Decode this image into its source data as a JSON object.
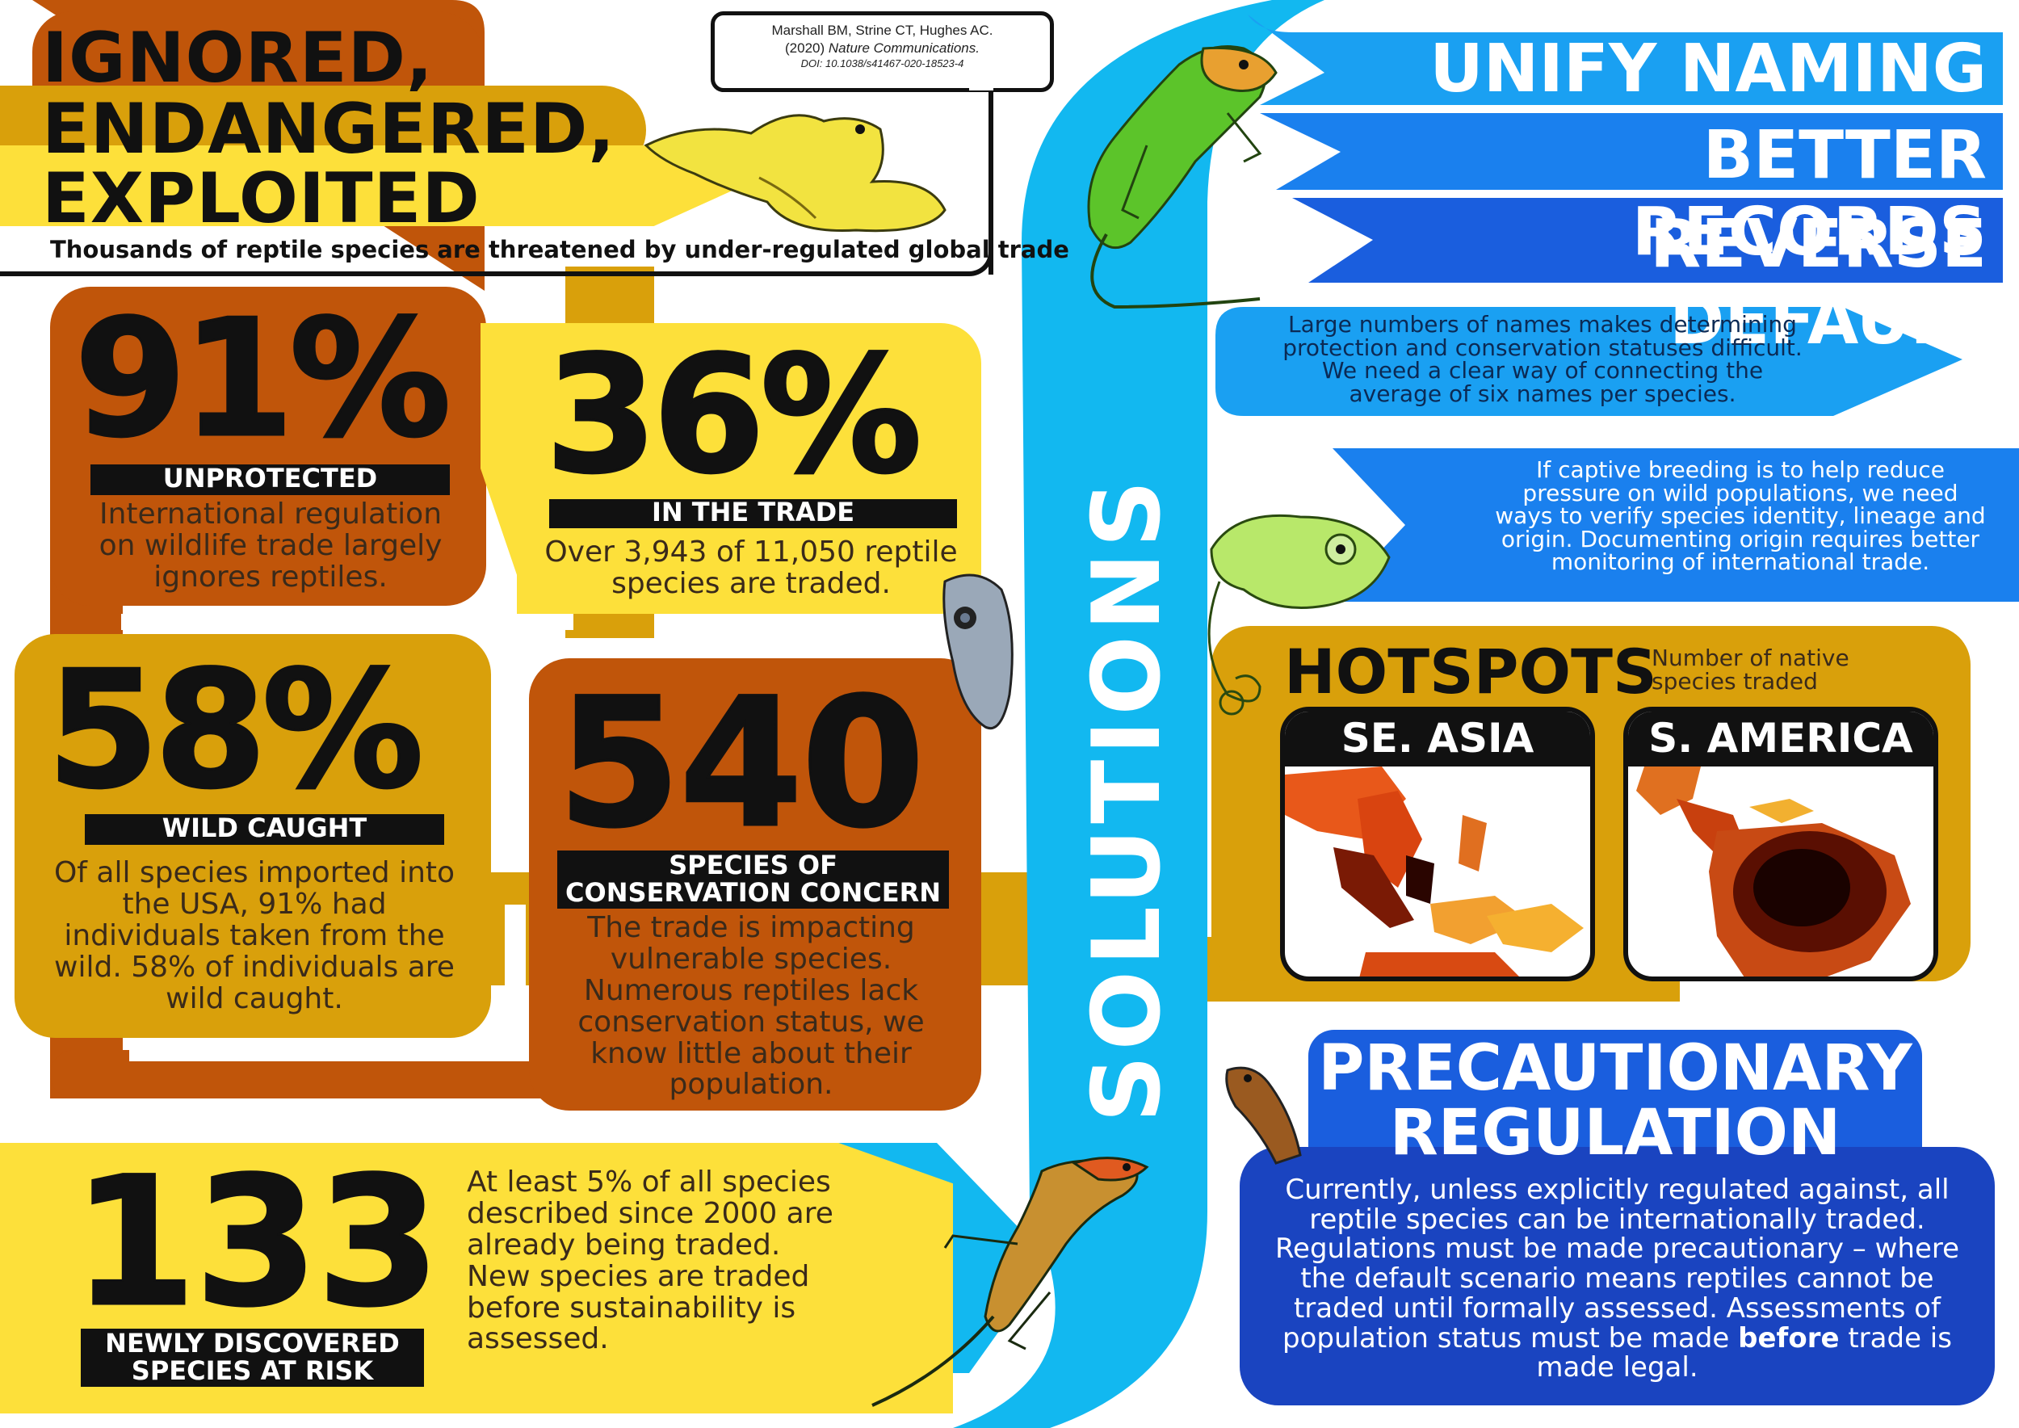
{
  "header": {
    "title_line1": "IGNORED,",
    "title_line2": "ENDANGERED,",
    "title_line3": "EXPLOITED",
    "subtitle": "Thousands of reptile species are threatened by under-regulated global trade"
  },
  "citation": {
    "authors": "Marshall BM, Strine CT, Hughes AC.",
    "journal_line_year": "(2020)",
    "journal_line_name": "Nature Communications.",
    "doi": "DOI: 10.1038/s41467-020-18523-4"
  },
  "stats": {
    "unprotected": {
      "number": "91%",
      "label": "UNPROTECTED",
      "text": "International regulation on wildlife trade largely ignores reptiles."
    },
    "in_trade": {
      "number": "36%",
      "label": "IN THE TRADE",
      "text": "Over 3,943 of 11,050 reptile species are traded."
    },
    "wild_caught": {
      "number": "58%",
      "label": "WILD CAUGHT",
      "text": "Of all species imported into the USA, 91% had individuals taken from the wild. 58% of individuals are wild caught."
    },
    "concern": {
      "number": "540",
      "label_line1": "SPECIES OF",
      "label_line2": "CONSERVATION CONCERN",
      "text": "The trade is impacting vulnerable species. Numerous reptiles lack conservation status, we know little about their population."
    },
    "newly": {
      "number": "133",
      "label_line1": "NEWLY DISCOVERED",
      "label_line2": "SPECIES AT RISK",
      "text": "At least 5% of all species described since 2000 are already being traded. New species are traded before sustainability is assessed."
    }
  },
  "solutions": {
    "vertical_title": "SOLUTIONS",
    "heading1": "UNIFY NAMING",
    "heading2": "BETTER RECORDS",
    "heading3": "REVERSE DEFAULT",
    "naming_text": "Large numbers of names makes determining protection and conservation statuses difficult. We need a clear way of connecting the average of six names per species.",
    "records_text": "If captive breeding is to help reduce pressure on wild populations, we need ways to verify species identity, lineage and origin. Documenting origin requires better monitoring of international trade."
  },
  "hotspots": {
    "title": "HOTSPOTS",
    "caption": "Number of native species traded",
    "region1": "SE. ASIA",
    "region2": "S. AMERICA"
  },
  "precautionary": {
    "title_line1": "PRECAUTIONARY",
    "title_line2": "REGULATION",
    "text_part1": "Currently, unless explicitly regulated against, all reptile species can be internationally traded. Regulations must be made precautionary – where the default scenario means reptiles cannot be traded until formally assessed. Assessments of population status must be made ",
    "text_bold": "before",
    "text_part2": " trade is made legal."
  },
  "colors": {
    "rust": "#c0550a",
    "gold": "#d9a00b",
    "yellow": "#fde03a",
    "sky": "#12b8f0",
    "blue": "#1a8cf0",
    "royal": "#1557d8",
    "navy": "#1a44c0",
    "black": "#111111"
  }
}
